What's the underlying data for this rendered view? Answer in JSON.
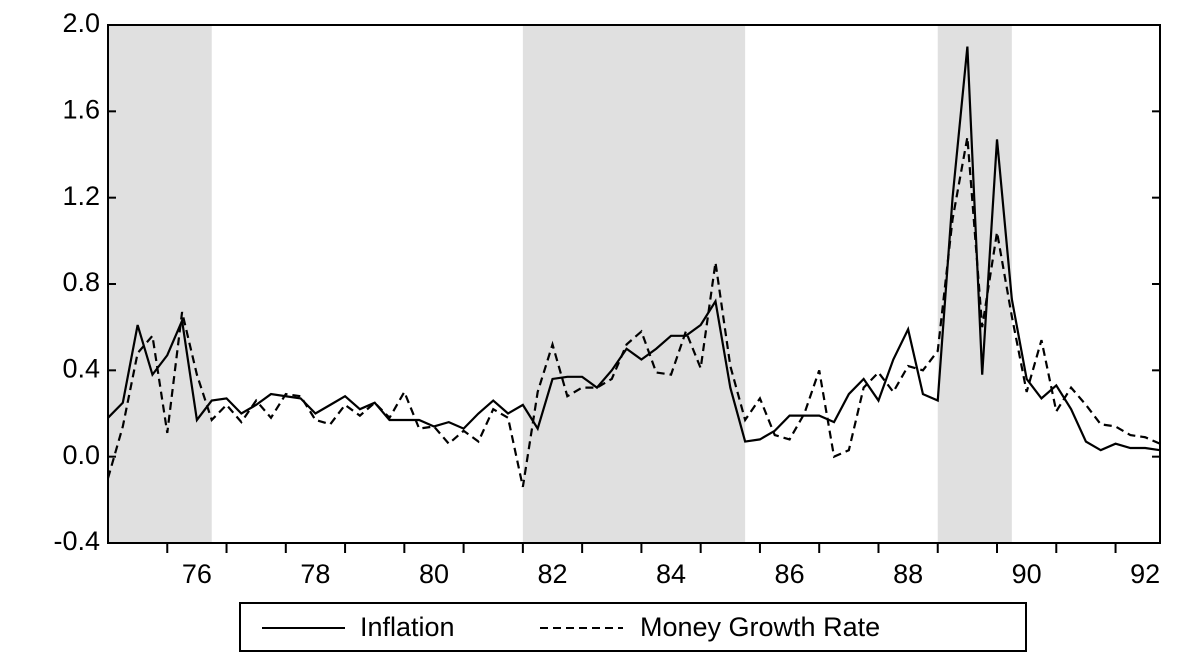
{
  "chart_data": {
    "type": "line",
    "x": [
      75,
      75.25,
      75.5,
      75.75,
      76,
      76.25,
      76.5,
      76.75,
      77,
      77.25,
      77.5,
      77.75,
      78,
      78.25,
      78.5,
      78.75,
      79,
      79.25,
      79.5,
      79.75,
      80,
      80.25,
      80.5,
      80.75,
      81,
      81.25,
      81.5,
      81.75,
      82,
      82.25,
      82.5,
      82.75,
      83,
      83.25,
      83.5,
      83.75,
      84,
      84.25,
      84.5,
      84.75,
      85,
      85.25,
      85.5,
      85.75,
      86,
      86.25,
      86.5,
      86.75,
      87,
      87.25,
      87.5,
      87.75,
      88,
      88.25,
      88.5,
      88.75,
      89,
      89.25,
      89.5,
      89.75,
      90,
      90.25,
      90.5,
      90.75,
      91,
      91.25,
      91.5,
      91.75,
      92,
      92.25,
      92.5,
      92.75
    ],
    "series": [
      {
        "name": "Inflation",
        "color": "#000000",
        "dash": "solid",
        "values": [
          0.18,
          0.25,
          0.61,
          0.38,
          0.47,
          0.63,
          0.17,
          0.26,
          0.27,
          0.2,
          0.24,
          0.29,
          0.28,
          0.27,
          0.2,
          0.24,
          0.28,
          0.22,
          0.25,
          0.17,
          0.17,
          0.17,
          0.14,
          0.16,
          0.13,
          0.2,
          0.26,
          0.2,
          0.24,
          0.13,
          0.36,
          0.37,
          0.37,
          0.32,
          0.4,
          0.5,
          0.45,
          0.5,
          0.56,
          0.56,
          0.61,
          0.72,
          0.32,
          0.07,
          0.08,
          0.12,
          0.19,
          0.19,
          0.19,
          0.16,
          0.29,
          0.36,
          0.26,
          0.45,
          0.59,
          0.29,
          0.26,
          1.2,
          1.9,
          0.38,
          1.47,
          0.73,
          0.36,
          0.27,
          0.33,
          0.22,
          0.07,
          0.03,
          0.06,
          0.04,
          0.04,
          0.03
        ]
      },
      {
        "name": "Money Growth Rate",
        "color": "#000000",
        "dash": "dashed",
        "values": [
          -0.1,
          0.14,
          0.48,
          0.56,
          0.11,
          0.67,
          0.38,
          0.17,
          0.24,
          0.16,
          0.26,
          0.18,
          0.29,
          0.28,
          0.17,
          0.15,
          0.24,
          0.19,
          0.25,
          0.18,
          0.3,
          0.13,
          0.14,
          0.06,
          0.12,
          0.07,
          0.22,
          0.18,
          -0.14,
          0.3,
          0.52,
          0.28,
          0.32,
          0.32,
          0.36,
          0.52,
          0.58,
          0.39,
          0.38,
          0.58,
          0.41,
          0.9,
          0.42,
          0.17,
          0.27,
          0.1,
          0.08,
          0.2,
          0.4,
          0,
          0.03,
          0.32,
          0.39,
          0.3,
          0.42,
          0.4,
          0.49,
          1.1,
          1.48,
          0.6,
          1.04,
          0.65,
          0.3,
          0.54,
          0.21,
          0.32,
          0.24,
          0.15,
          0.14,
          0.1,
          0.09,
          0.06
        ]
      }
    ],
    "xlim": [
      75,
      92.75
    ],
    "xticks": [
      76,
      78,
      80,
      82,
      84,
      86,
      88,
      90,
      92
    ],
    "xminorticks": [
      77,
      79,
      81,
      83,
      85,
      87,
      89,
      91
    ],
    "ylim": [
      -0.4,
      2.0
    ],
    "yticks": [
      {
        "value": 2.0,
        "label": "2.0"
      },
      1.6,
      1.2,
      0.8,
      0.4,
      {
        "value": 0.0,
        "label": "0.0"
      },
      -0.4
    ],
    "shaded_regions": [
      [
        75,
        76.75
      ],
      [
        82,
        85.75
      ],
      [
        89,
        90.25
      ]
    ],
    "shade_color": "#e0e0e0",
    "legend": "bottom"
  }
}
